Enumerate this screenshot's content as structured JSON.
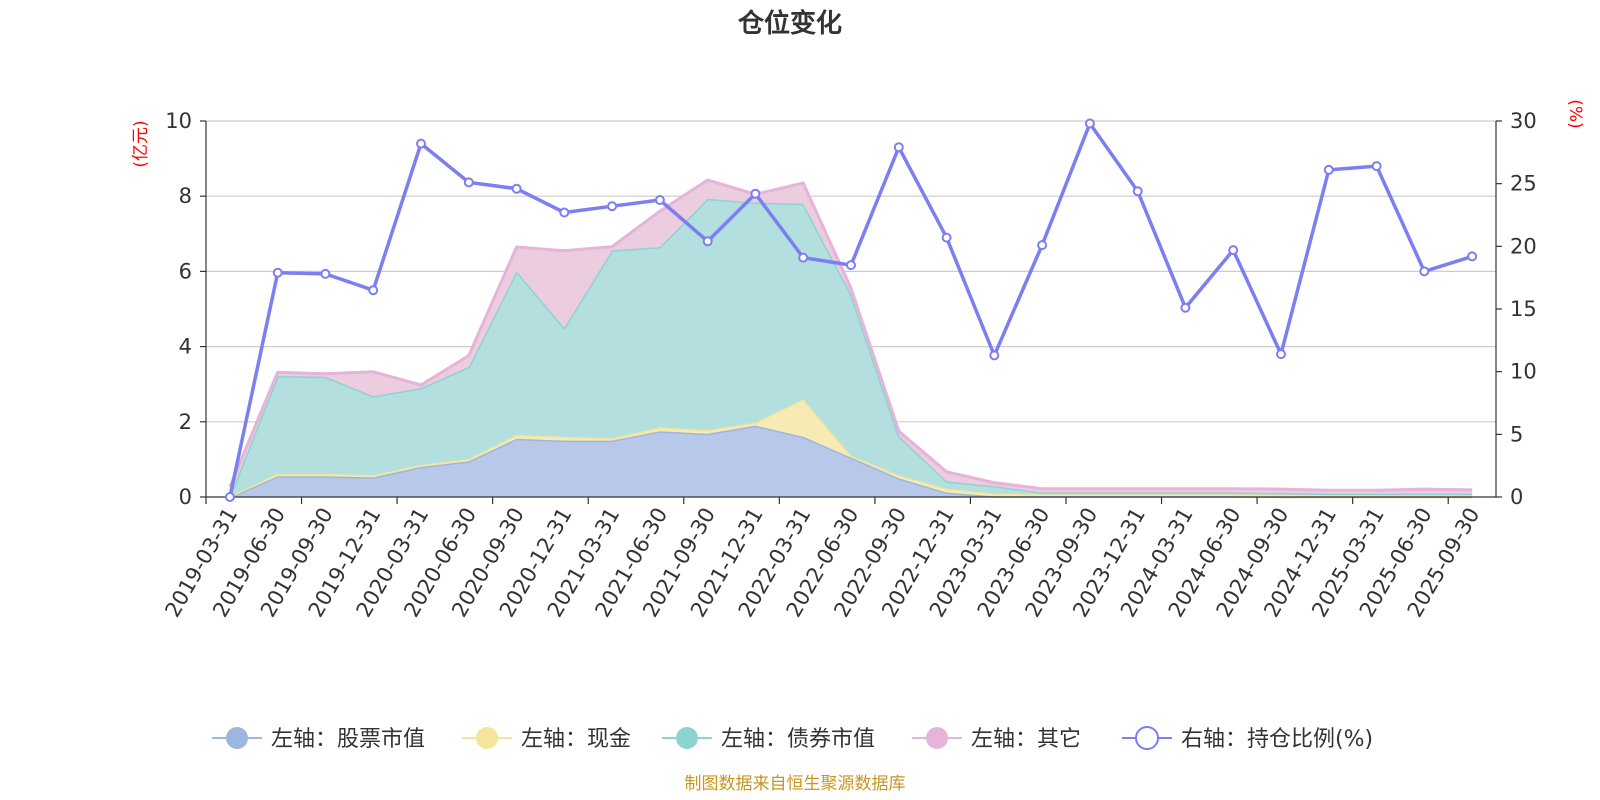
{
  "chart_data": {
    "type": "area",
    "title": "仓位变化",
    "left_unit": "(亿元)",
    "right_unit": "(%)",
    "source": "制图数据来自恒生聚源数据库",
    "categories": [
      "2019-03-31",
      "2019-06-30",
      "2019-09-30",
      "2019-12-31",
      "2020-03-31",
      "2020-06-30",
      "2020-09-30",
      "2020-12-31",
      "2021-03-31",
      "2021-06-30",
      "2021-09-30",
      "2021-12-31",
      "2022-03-31",
      "2022-06-30",
      "2022-09-30",
      "2022-12-31",
      "2023-03-31",
      "2023-06-30",
      "2023-09-30",
      "2023-12-31",
      "2024-03-31",
      "2024-06-30",
      "2024-09-30",
      "2024-12-31",
      "2025-03-31",
      "2025-06-30",
      "2025-09-30"
    ],
    "y_left": {
      "min": 0,
      "max": 10,
      "ticks": [
        0,
        2,
        4,
        6,
        8,
        10
      ]
    },
    "y_right": {
      "min": 0,
      "max": 30,
      "ticks": [
        0,
        5,
        10,
        15,
        20,
        25,
        30
      ]
    },
    "grid": true,
    "legend_position": "bottom",
    "stacked_series": [
      {
        "name": "左轴：股票市值",
        "color": "#9db6e0",
        "fill": "#b7c8e8",
        "values": [
          0.0,
          0.55,
          0.55,
          0.52,
          0.8,
          0.95,
          1.55,
          1.5,
          1.5,
          1.75,
          1.68,
          1.9,
          1.6,
          1.05,
          0.5,
          0.12,
          0.02,
          0.02,
          0.02,
          0.02,
          0.02,
          0.02,
          0.01,
          0.01,
          0.01,
          0.01,
          0.01
        ]
      },
      {
        "name": "左轴：现金",
        "color": "#f5e59a",
        "fill": "#f8eab5",
        "values": [
          0.02,
          0.07,
          0.07,
          0.06,
          0.05,
          0.06,
          0.1,
          0.1,
          0.06,
          0.1,
          0.1,
          0.08,
          1.0,
          0.05,
          0.08,
          0.1,
          0.07,
          0.05,
          0.05,
          0.05,
          0.05,
          0.05,
          0.05,
          0.04,
          0.04,
          0.04,
          0.04
        ]
      },
      {
        "name": "左轴：债券市值",
        "color": "#8dd3d0",
        "fill": "#b3e0df",
        "values": [
          0.0,
          2.6,
          2.58,
          2.1,
          2.05,
          2.45,
          4.35,
          2.9,
          5.0,
          4.8,
          6.15,
          5.85,
          5.2,
          4.3,
          1.05,
          0.2,
          0.2,
          0.05,
          0.05,
          0.05,
          0.05,
          0.05,
          0.05,
          0.04,
          0.04,
          0.04,
          0.04
        ]
      },
      {
        "name": "左轴：其它",
        "color": "#e6b3d9",
        "fill": "#ecccdf",
        "values": [
          0.25,
          0.1,
          0.08,
          0.65,
          0.08,
          0.3,
          0.65,
          2.05,
          0.1,
          0.95,
          0.5,
          0.22,
          0.55,
          0.15,
          0.12,
          0.25,
          0.09,
          0.1,
          0.1,
          0.1,
          0.1,
          0.1,
          0.1,
          0.09,
          0.09,
          0.12,
          0.1
        ]
      }
    ],
    "line_series": {
      "name": "右轴：持仓比例(%)",
      "color": "#7b7ff0",
      "values": [
        0.0,
        17.9,
        17.8,
        16.5,
        28.2,
        25.1,
        24.6,
        22.7,
        23.2,
        23.7,
        20.4,
        24.2,
        19.1,
        18.5,
        27.9,
        20.7,
        11.3,
        20.1,
        29.8,
        24.4,
        15.1,
        19.7,
        11.4,
        26.1,
        26.4,
        18.0,
        19.2
      ]
    }
  }
}
